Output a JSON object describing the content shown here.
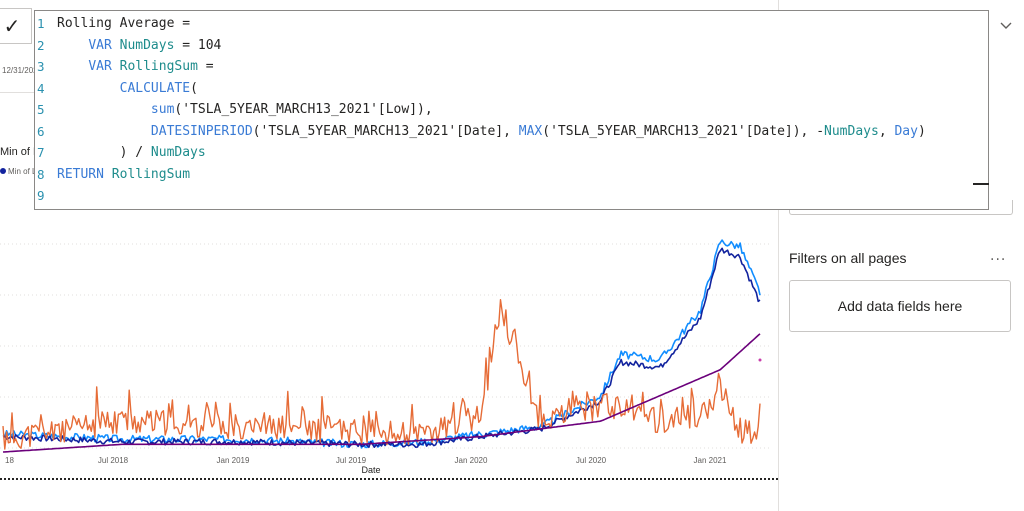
{
  "visual_left": {
    "check_icon": "check-icon",
    "date_fragment": "12/31/202",
    "legend_title_fragment": "Min of L",
    "legend_item_fragment": "Min of L"
  },
  "editor": {
    "lines": [
      {
        "n": "1",
        "tokens": [
          {
            "t": "Rolling Average =",
            "c": "plain"
          }
        ]
      },
      {
        "n": "2",
        "tokens": [
          {
            "t": "    ",
            "c": "plain"
          },
          {
            "t": "VAR",
            "c": "kw"
          },
          {
            "t": " ",
            "c": "plain"
          },
          {
            "t": "NumDays",
            "c": "var"
          },
          {
            "t": " = ",
            "c": "plain"
          },
          {
            "t": "104",
            "c": "plain"
          }
        ]
      },
      {
        "n": "3",
        "tokens": [
          {
            "t": "    ",
            "c": "plain"
          },
          {
            "t": "VAR",
            "c": "kw"
          },
          {
            "t": " ",
            "c": "plain"
          },
          {
            "t": "RollingSum",
            "c": "var"
          },
          {
            "t": " =",
            "c": "plain"
          }
        ]
      },
      {
        "n": "4",
        "tokens": [
          {
            "t": "        ",
            "c": "plain"
          },
          {
            "t": "CALCULATE",
            "c": "fn"
          },
          {
            "t": "(",
            "c": "plain"
          }
        ]
      },
      {
        "n": "5",
        "tokens": [
          {
            "t": "            ",
            "c": "plain"
          },
          {
            "t": "sum",
            "c": "fn"
          },
          {
            "t": "('TSLA_5YEAR_MARCH13_2021'[Low]),",
            "c": "plain"
          }
        ]
      },
      {
        "n": "6",
        "tokens": [
          {
            "t": "            ",
            "c": "plain"
          },
          {
            "t": "DATESINPERIOD",
            "c": "fn"
          },
          {
            "t": "('TSLA_5YEAR_MARCH13_2021'[Date], ",
            "c": "plain"
          },
          {
            "t": "MAX",
            "c": "fn"
          },
          {
            "t": "('TSLA_5YEAR_MARCH13_2021'[Date]), -",
            "c": "plain"
          },
          {
            "t": "NumDays",
            "c": "var"
          },
          {
            "t": ", ",
            "c": "plain"
          },
          {
            "t": "Day",
            "c": "kw"
          },
          {
            "t": ")",
            "c": "plain"
          }
        ]
      },
      {
        "n": "7",
        "tokens": [
          {
            "t": "        ) / ",
            "c": "plain"
          },
          {
            "t": "NumDays",
            "c": "var"
          }
        ]
      },
      {
        "n": "8",
        "tokens": [
          {
            "t": "RETURN",
            "c": "kw"
          },
          {
            "t": " ",
            "c": "plain"
          },
          {
            "t": "RollingSum",
            "c": "var"
          }
        ]
      },
      {
        "n": "9",
        "tokens": []
      }
    ]
  },
  "filters_pane": {
    "section_title": "Filters on all pages",
    "more_label": "...",
    "add_fields_label": "Add data fields here",
    "collapse_icon": "chevron-down-icon",
    "minimize_icon": "minus-icon"
  },
  "colors": {
    "blue_light": "#118dff",
    "blue_dark": "#12239e",
    "orange": "#e66c37",
    "purple": "#6b007b"
  },
  "chart_data": {
    "type": "line",
    "xlabel": "Date",
    "x_ticks": [
      "18",
      "Jul 2018",
      "Jan 2019",
      "Jul 2019",
      "Jan 2020",
      "Jul 2020",
      "Jan 2021"
    ],
    "series": [
      {
        "key": "light_blue",
        "color": "#118dff",
        "points": [
          [
            "2018-01",
            0.07
          ],
          [
            "2018-07",
            0.05
          ],
          [
            "2019-01",
            0.05
          ],
          [
            "2019-07",
            0.03
          ],
          [
            "2019-10",
            0.04
          ],
          [
            "2020-01",
            0.07
          ],
          [
            "2020-04",
            0.1
          ],
          [
            "2020-07",
            0.22
          ],
          [
            "2020-08",
            0.38
          ],
          [
            "2020-10",
            0.36
          ],
          [
            "2020-12",
            0.55
          ],
          [
            "2021-01",
            0.82
          ],
          [
            "2021-02",
            0.8
          ],
          [
            "2021-03",
            0.62
          ]
        ]
      },
      {
        "key": "dark_blue",
        "color": "#12239e",
        "points": [
          [
            "2018-01",
            0.06
          ],
          [
            "2018-07",
            0.04
          ],
          [
            "2019-01",
            0.04
          ],
          [
            "2019-07",
            0.03
          ],
          [
            "2019-10",
            0.03
          ],
          [
            "2020-01",
            0.06
          ],
          [
            "2020-04",
            0.09
          ],
          [
            "2020-07",
            0.2
          ],
          [
            "2020-08",
            0.35
          ],
          [
            "2020-10",
            0.33
          ],
          [
            "2020-12",
            0.52
          ],
          [
            "2021-01",
            0.79
          ],
          [
            "2021-02",
            0.76
          ],
          [
            "2021-03",
            0.58
          ]
        ]
      },
      {
        "key": "orange",
        "color": "#e66c37",
        "points": [
          [
            "2018-01",
            0.05
          ],
          [
            "2018-07",
            0.12
          ],
          [
            "2019-01",
            0.1
          ],
          [
            "2019-07",
            0.08
          ],
          [
            "2019-10",
            0.06
          ],
          [
            "2020-01",
            0.14
          ],
          [
            "2020-02",
            0.56
          ],
          [
            "2020-04",
            0.12
          ],
          [
            "2020-07",
            0.18
          ],
          [
            "2020-10",
            0.12
          ],
          [
            "2020-12",
            0.14
          ],
          [
            "2021-01",
            0.25
          ],
          [
            "2021-02",
            0.06
          ],
          [
            "2021-03",
            0.1
          ]
        ]
      },
      {
        "key": "purple",
        "color": "#6b007b",
        "points": [
          [
            "2018-01",
            0.0
          ],
          [
            "2018-07",
            0.03
          ],
          [
            "2019-01",
            0.03
          ],
          [
            "2019-07",
            0.03
          ],
          [
            "2020-01",
            0.06
          ],
          [
            "2020-07",
            0.12
          ],
          [
            "2020-10",
            0.22
          ],
          [
            "2021-01",
            0.32
          ],
          [
            "2021-03",
            0.46
          ]
        ]
      }
    ]
  }
}
